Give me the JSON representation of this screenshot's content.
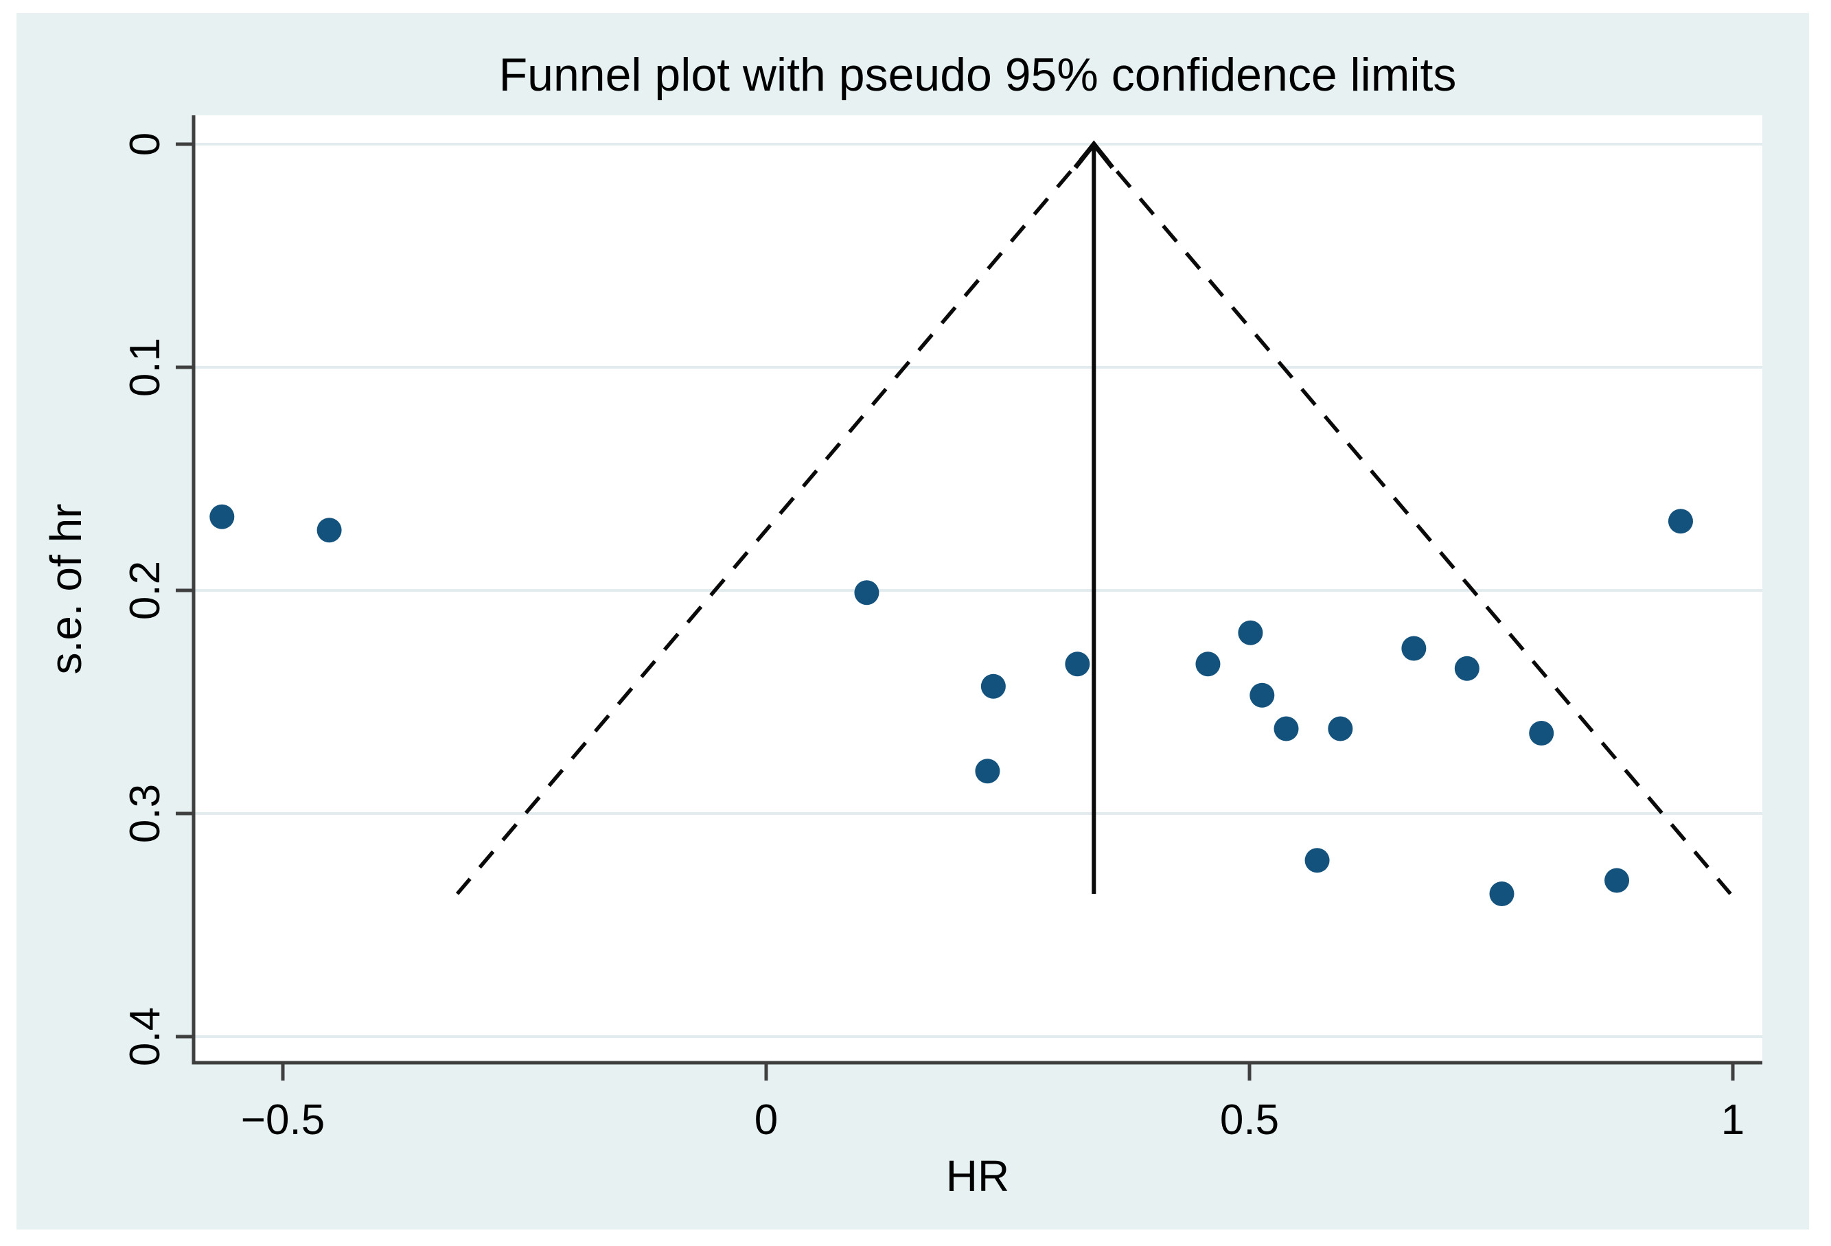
{
  "page": {
    "background": "#FFFFFF",
    "canvas_background": "#E7F1F2"
  },
  "chart_data": {
    "type": "scatter",
    "title": "Funnel plot with pseudo 95% confidence limits",
    "xlabel": "HR",
    "ylabel": "s.e. of hr",
    "legend": "none",
    "grid": "horizontal",
    "y_axis_inverted": true,
    "xlim": [
      -0.59,
      1.03
    ],
    "ylim": [
      0,
      0.412
    ],
    "x_ticks": [
      {
        "value": -0.5,
        "label": "−0.5"
      },
      {
        "value": 0,
        "label": "0"
      },
      {
        "value": 0.5,
        "label": "0.5"
      },
      {
        "value": 1,
        "label": "1"
      }
    ],
    "y_ticks": [
      {
        "value": 0,
        "label": "0"
      },
      {
        "value": 0.1,
        "label": "0.1"
      },
      {
        "value": 0.2,
        "label": "0.2"
      },
      {
        "value": 0.3,
        "label": "0.3"
      },
      {
        "value": 0.4,
        "label": "0.4"
      }
    ],
    "points": [
      {
        "hr": -0.563,
        "se": 0.167
      },
      {
        "hr": -0.452,
        "se": 0.173
      },
      {
        "hr": 0.104,
        "se": 0.201
      },
      {
        "hr": 0.235,
        "se": 0.243
      },
      {
        "hr": 0.229,
        "se": 0.281
      },
      {
        "hr": 0.322,
        "se": 0.233
      },
      {
        "hr": 0.457,
        "se": 0.233
      },
      {
        "hr": 0.501,
        "se": 0.219
      },
      {
        "hr": 0.513,
        "se": 0.247
      },
      {
        "hr": 0.538,
        "se": 0.262
      },
      {
        "hr": 0.594,
        "se": 0.262
      },
      {
        "hr": 0.57,
        "se": 0.321
      },
      {
        "hr": 0.67,
        "se": 0.226
      },
      {
        "hr": 0.725,
        "se": 0.235
      },
      {
        "hr": 0.761,
        "se": 0.336
      },
      {
        "hr": 0.802,
        "se": 0.264
      },
      {
        "hr": 0.88,
        "se": 0.33
      },
      {
        "hr": 0.946,
        "se": 0.169
      }
    ],
    "funnel": {
      "apex_hr": 0.339,
      "apex_se": 0,
      "max_se": 0.336,
      "z": 1.96,
      "line_style": "dashed"
    },
    "effect_line": {
      "hr": 0.339,
      "from_se": 0,
      "to_se": 0.336,
      "arrow": "up"
    },
    "colors": {
      "marker": "#14527E",
      "axis": "#3F3F3F",
      "grid": "#E2ECEE",
      "funnel_line": "#0A0A0A",
      "effect_line": "#0A0A0A",
      "plot_background": "#FFFFFF",
      "canvas_background": "#E7F1F2",
      "text": "#000000"
    }
  }
}
